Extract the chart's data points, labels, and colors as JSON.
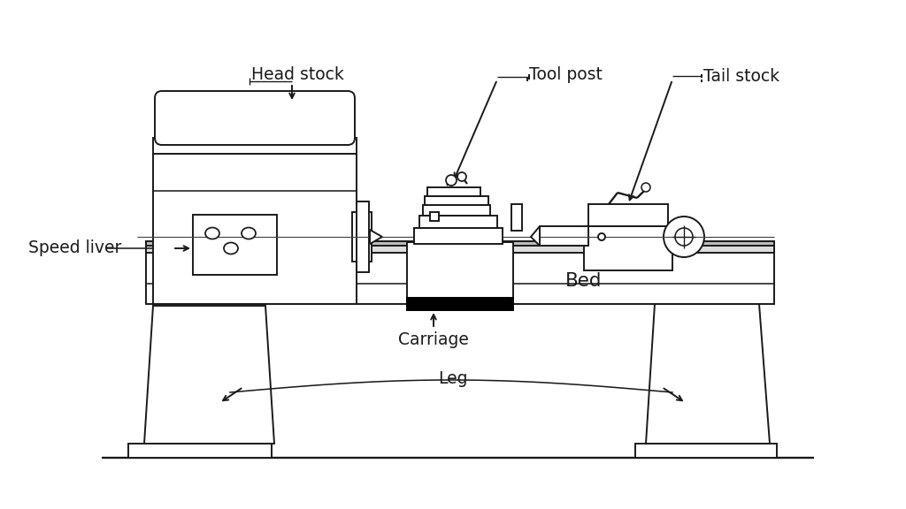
{
  "bg_color": "#ffffff",
  "line_color": "#1a1a1a",
  "lw": 1.4,
  "labels": {
    "head_stock": "Head stock",
    "tool_post": "Tool post",
    "tail_stock": "Tail stock",
    "speed_liver": "Speed liver",
    "bed": "Bed",
    "carriage": "Carriage",
    "leg": "Leg"
  },
  "figsize": [
    10.24,
    5.76
  ],
  "dpi": 100
}
